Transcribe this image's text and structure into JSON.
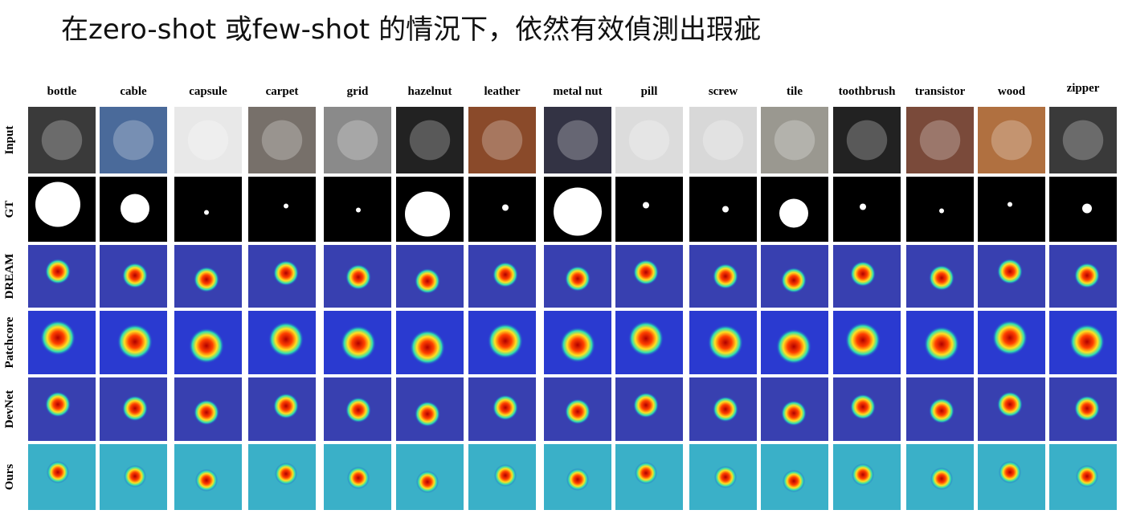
{
  "title": "在zero-shot 或few-shot 的情況下，依然有效偵測出瑕疵",
  "columns": [
    "bottle",
    "cable",
    "capsule",
    "carpet",
    "grid",
    "hazelnut",
    "leather",
    "metal nut",
    "pill",
    "screw",
    "tile",
    "toothbrush",
    "transistor",
    "wood",
    "zipper"
  ],
  "rows": [
    "Input",
    "GT",
    "DREAM",
    "Patchcore",
    "DevNet",
    "Ours"
  ]
}
